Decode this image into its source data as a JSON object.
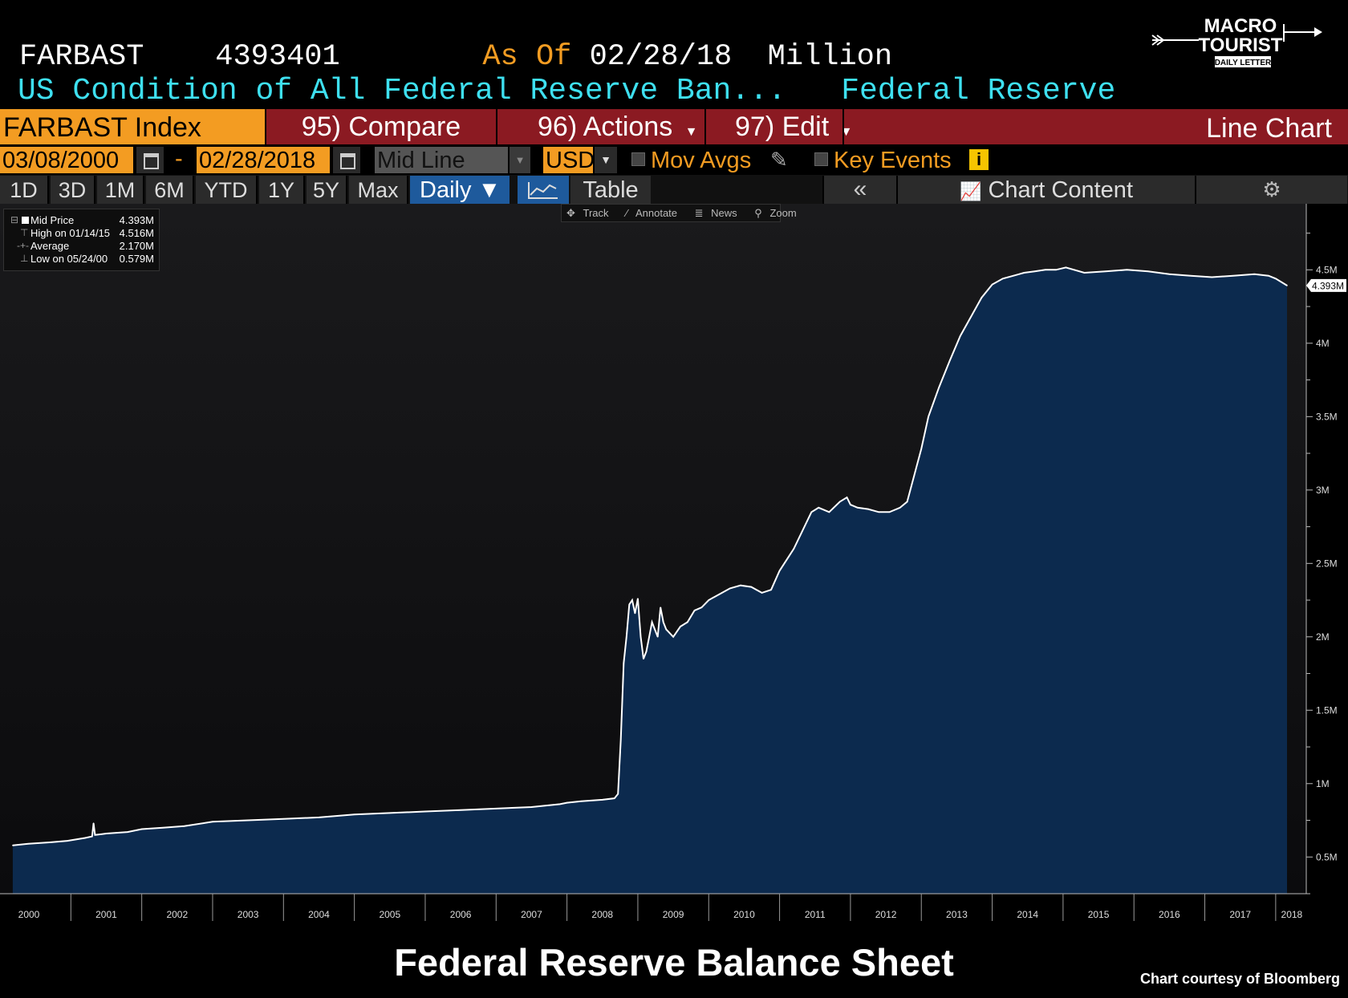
{
  "header": {
    "ticker": "FARBAST",
    "last_value": "4393401",
    "as_of_label": "As Of",
    "as_of_date": "02/28/18",
    "unit": "Million",
    "security_name": "US Condition of All Federal Reserve Ban...",
    "source": "Federal Reserve"
  },
  "logo": {
    "line1": "MACRO",
    "line2": "TOURIST",
    "line3": "DAILY LETTER"
  },
  "menu": {
    "ticker_box": "FARBAST Index",
    "compare": "95) Compare",
    "actions": "96) Actions",
    "edit": "97) Edit",
    "chart_type": "Line Chart"
  },
  "controls": {
    "start_date": "03/08/2000",
    "dash": "-",
    "end_date": "02/28/2018",
    "price_type": "Mid Line",
    "currency": "USD",
    "mov_avgs": "Mov Avgs",
    "key_events": "Key Events",
    "info_icon": "i"
  },
  "periods": [
    "1D",
    "3D",
    "1M",
    "6M",
    "YTD",
    "1Y",
    "5Y",
    "Max"
  ],
  "frequency": "Daily ▼",
  "table_label": "Table",
  "collapse_label": "«",
  "chart_content_label": "Chart Content",
  "tools": [
    "Track",
    "Annotate",
    "News",
    "Zoom"
  ],
  "legend": [
    {
      "label": "Mid Price",
      "value": "4.393M"
    },
    {
      "label": "High on 01/14/15",
      "value": "4.516M"
    },
    {
      "label": "Average",
      "value": "2.170M"
    },
    {
      "label": "Low on 05/24/00",
      "value": "0.579M"
    }
  ],
  "chart_data": {
    "type": "area",
    "x_unit": "year",
    "y_unit": "million USD",
    "x": [
      2000.18,
      2000.4,
      2000.7,
      2000.95,
      2001.2,
      2001.3,
      2001.32,
      2001.34,
      2001.5,
      2001.8,
      2002.0,
      2002.3,
      2002.6,
      2003.0,
      2003.5,
      2004.0,
      2004.5,
      2005.0,
      2005.5,
      2006.0,
      2006.5,
      2007.0,
      2007.5,
      2007.9,
      2008.0,
      2008.2,
      2008.5,
      2008.67,
      2008.72,
      2008.76,
      2008.8,
      2008.84,
      2008.88,
      2008.92,
      2008.96,
      2009.0,
      2009.04,
      2009.08,
      2009.12,
      2009.16,
      2009.2,
      2009.24,
      2009.28,
      2009.32,
      2009.36,
      2009.4,
      2009.5,
      2009.6,
      2009.7,
      2009.8,
      2009.9,
      2010.0,
      2010.15,
      2010.3,
      2010.45,
      2010.6,
      2010.75,
      2010.88,
      2011.0,
      2011.2,
      2011.45,
      2011.55,
      2011.7,
      2011.85,
      2011.95,
      2012.0,
      2012.1,
      2012.25,
      2012.4,
      2012.55,
      2012.7,
      2012.8,
      2012.9,
      2013.0,
      2013.1,
      2013.25,
      2013.4,
      2013.55,
      2013.7,
      2013.85,
      2014.0,
      2014.15,
      2014.3,
      2014.45,
      2014.6,
      2014.75,
      2014.9,
      2015.04,
      2015.3,
      2015.6,
      2015.9,
      2016.2,
      2016.5,
      2016.8,
      2017.1,
      2017.4,
      2017.7,
      2017.9,
      2018.0,
      2018.16
    ],
    "y": [
      0.579,
      0.59,
      0.6,
      0.61,
      0.63,
      0.64,
      0.73,
      0.65,
      0.66,
      0.67,
      0.69,
      0.7,
      0.71,
      0.74,
      0.75,
      0.76,
      0.77,
      0.79,
      0.8,
      0.81,
      0.82,
      0.83,
      0.84,
      0.86,
      0.87,
      0.88,
      0.89,
      0.9,
      0.93,
      1.3,
      1.82,
      2.0,
      2.22,
      2.25,
      2.16,
      2.26,
      2.0,
      1.85,
      1.9,
      2.0,
      2.1,
      2.05,
      2.0,
      2.2,
      2.1,
      2.05,
      2.0,
      2.07,
      2.1,
      2.18,
      2.2,
      2.25,
      2.29,
      2.33,
      2.35,
      2.34,
      2.3,
      2.32,
      2.45,
      2.6,
      2.85,
      2.88,
      2.85,
      2.92,
      2.95,
      2.9,
      2.88,
      2.87,
      2.85,
      2.85,
      2.88,
      2.92,
      3.1,
      3.28,
      3.5,
      3.7,
      3.88,
      4.05,
      4.18,
      4.31,
      4.4,
      4.44,
      4.46,
      4.48,
      4.49,
      4.5,
      4.5,
      4.516,
      4.48,
      4.49,
      4.5,
      4.49,
      4.47,
      4.46,
      4.45,
      4.46,
      4.47,
      4.46,
      4.44,
      4.393
    ],
    "xlim": [
      2000.0,
      2018.16
    ],
    "ylim": [
      0.25,
      4.95
    ],
    "y_ticks": [
      0.5,
      1,
      1.5,
      2,
      2.5,
      3,
      3.5,
      4,
      4.5
    ],
    "y_tick_labels": [
      "0.5M",
      "1M",
      "1.5M",
      "2M",
      "2.5M",
      "3M",
      "3.5M",
      "4M",
      "4.5M"
    ],
    "x_tick_labels": [
      "2000",
      "2001",
      "2002",
      "2003",
      "2004",
      "2005",
      "2006",
      "2007",
      "2008",
      "2009",
      "2010",
      "2011",
      "2012",
      "2013",
      "2014",
      "2015",
      "2016",
      "2017",
      "2018"
    ],
    "last_value_label": "4.393M",
    "fill_color": "#0c2a4e",
    "line_color": "#ffffff",
    "title": "Federal Reserve Balance Sheet"
  },
  "credit": "Chart courtesy of Bloomberg"
}
